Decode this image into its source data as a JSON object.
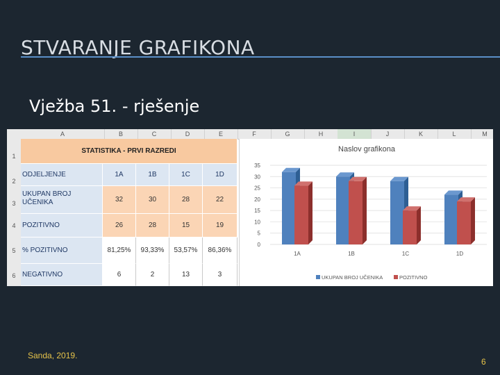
{
  "slide": {
    "title": "STVARANJE GRAFIKONA",
    "subtitle": "Vježba 51. - rješenje",
    "footer": "Sanda, 2019.",
    "page_number": "6"
  },
  "sheet": {
    "columns": [
      "A",
      "B",
      "C",
      "D",
      "E",
      "F",
      "G",
      "H",
      "I",
      "J",
      "K",
      "L",
      "M"
    ],
    "rows": [
      "1",
      "2",
      "3",
      "4",
      "5",
      "6"
    ],
    "table": {
      "header": "STATISTIKA - PRVI RAZREDI",
      "row_labels": [
        "ODJELJENJE",
        "UKUPAN BROJ UČENIKA",
        "POZITIVNO",
        "% POZITIVNO",
        "NEGATIVNO"
      ],
      "classes": [
        "1A",
        "1B",
        "1C",
        "1D"
      ],
      "ukupan": [
        "32",
        "30",
        "28",
        "22"
      ],
      "pozitivno": [
        "26",
        "28",
        "15",
        "19"
      ],
      "postotak": [
        "81,25%",
        "93,33%",
        "53,57%",
        "86,36%"
      ],
      "negativno": [
        "6",
        "2",
        "13",
        "3"
      ]
    }
  },
  "chart_data": {
    "type": "bar",
    "title": "Naslov grafikona",
    "categories": [
      "1A",
      "1B",
      "1C",
      "1D"
    ],
    "series": [
      {
        "name": "UKUPAN BROJ UČENIKA",
        "values": [
          32,
          30,
          28,
          22
        ],
        "color": "#4f81bd"
      },
      {
        "name": "POZITIVNO",
        "values": [
          26,
          28,
          15,
          19
        ],
        "color": "#c0504d"
      }
    ],
    "yticks": [
      "0",
      "5",
      "10",
      "15",
      "20",
      "25",
      "30",
      "35"
    ],
    "ylim": [
      0,
      35
    ],
    "grid": true,
    "legend": "bottom",
    "style": "3d-clustered-column"
  }
}
